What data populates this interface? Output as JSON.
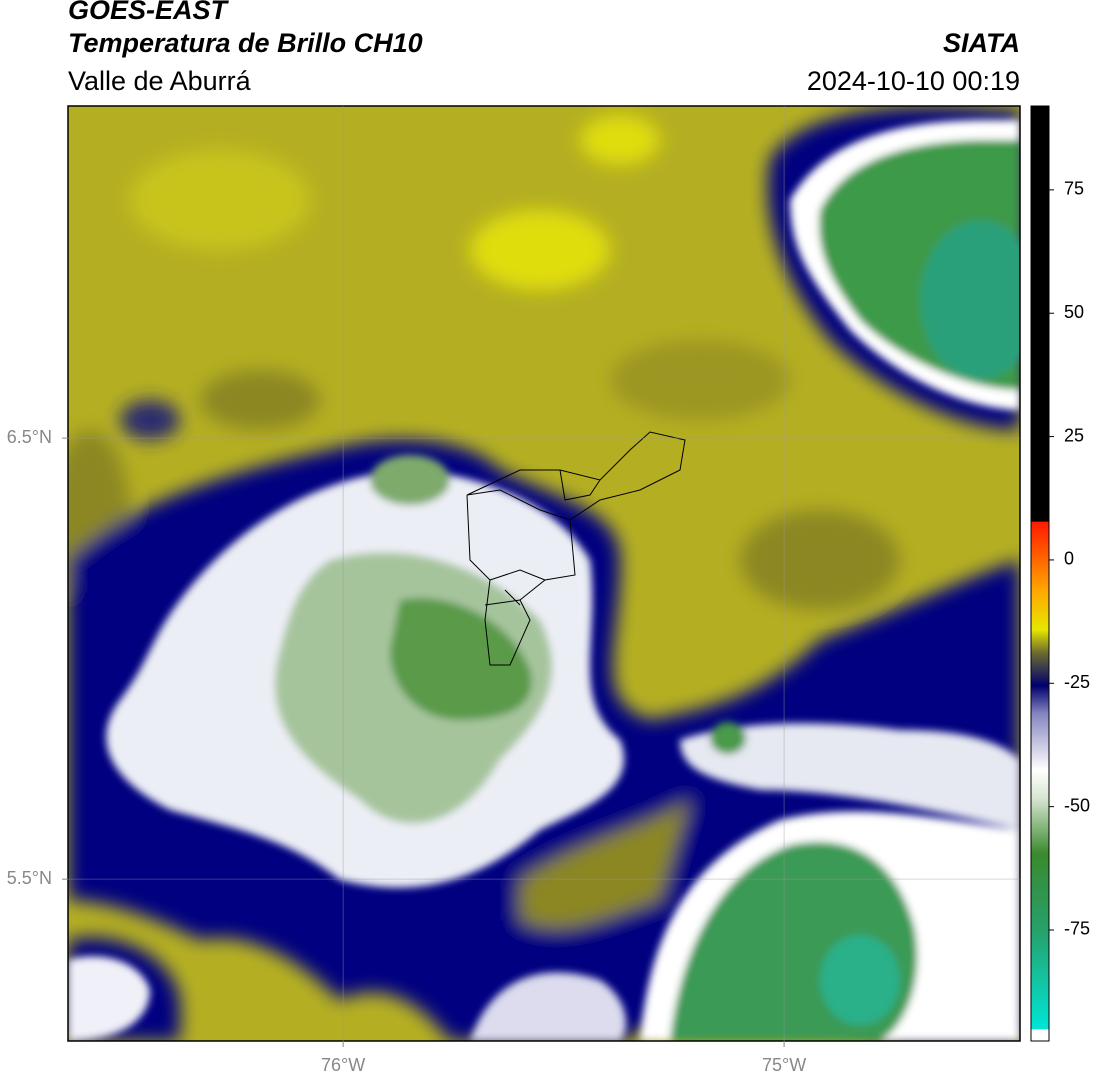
{
  "header": {
    "title": "GOES-EAST",
    "subtitle": "Temperatura de Brillo CH10",
    "region": "Valle de Aburrá",
    "source": "SIATA",
    "timestamp": "2024-10-10 00:19"
  },
  "map": {
    "xlim": [
      -76.624,
      -74.465
    ],
    "ylim": [
      5.133,
      7.253
    ],
    "xticks": [
      {
        "value": -76,
        "label": "76°W"
      },
      {
        "value": -75,
        "label": "75°W"
      }
    ],
    "yticks": [
      {
        "value": 5.5,
        "label": "5.5°N"
      },
      {
        "value": 6.5,
        "label": "6.5°N"
      }
    ],
    "grid": true
  },
  "colorbar": {
    "lim": [
      -97.5,
      92
    ],
    "ticks": [
      -75,
      -50,
      -25,
      0,
      25,
      50,
      75
    ]
  }
}
